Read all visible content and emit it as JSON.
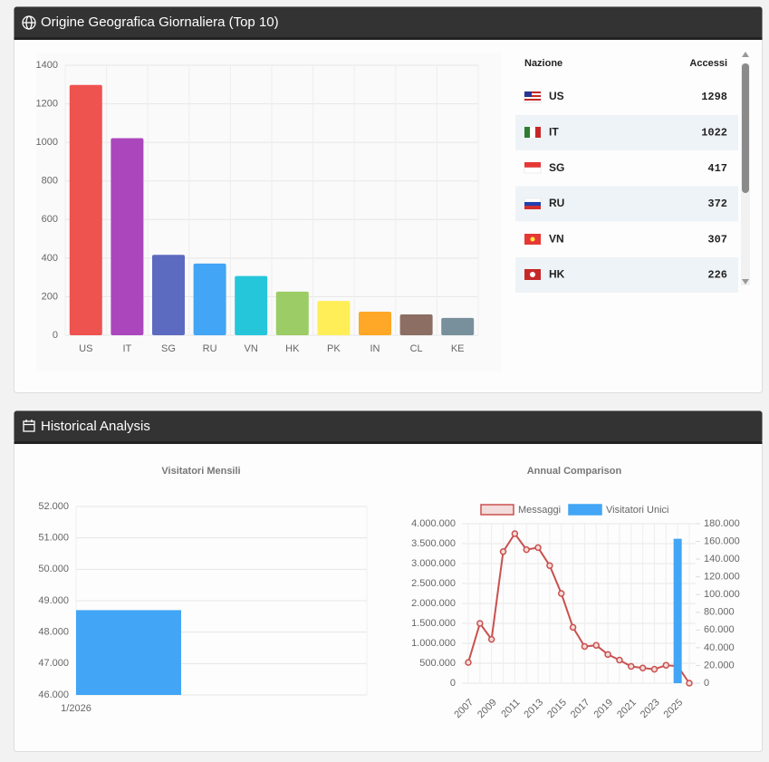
{
  "panels": [
    {
      "title": "Origine Geografica Giornaliera (Top 10)"
    },
    {
      "title": "Historical Analysis"
    }
  ],
  "table": {
    "headers": [
      "Nazione",
      "Accessi"
    ],
    "rows": [
      [
        "US",
        1298
      ],
      [
        "IT",
        1022
      ],
      [
        "SG",
        417
      ],
      [
        "RU",
        372
      ],
      [
        "VN",
        307
      ],
      [
        "HK",
        226
      ]
    ]
  },
  "chart_data": [
    {
      "type": "bar",
      "categories": [
        "US",
        "IT",
        "SG",
        "RU",
        "VN",
        "HK",
        "PK",
        "IN",
        "CL",
        "KE"
      ],
      "values": [
        1298,
        1022,
        417,
        372,
        307,
        226,
        178,
        122,
        108,
        90
      ],
      "colors": [
        "#ef5350",
        "#ab47bc",
        "#5c6bc0",
        "#42a5f5",
        "#26c6da",
        "#9ccc65",
        "#ffee58",
        "#ffa726",
        "#8d6e63",
        "#78909c"
      ],
      "ylim": [
        0,
        1400
      ],
      "yticks": [
        0,
        200,
        400,
        600,
        800,
        1000,
        1200,
        1400
      ],
      "grid": true
    },
    {
      "type": "bar",
      "title": "Visitatori Mensili",
      "categories": [
        "1/2026"
      ],
      "values": [
        48700
      ],
      "color": "#42a5f5",
      "ylim": [
        46000,
        52000
      ],
      "yticks": [
        {
          "value": 46000,
          "label": "46.000"
        },
        {
          "value": 47000,
          "label": "47.000"
        },
        {
          "value": 48000,
          "label": "48.000"
        },
        {
          "value": 49000,
          "label": "49.000"
        },
        {
          "value": 50000,
          "label": "50.000"
        },
        {
          "value": 51000,
          "label": "51.000"
        },
        {
          "value": 52000,
          "label": "52.000"
        }
      ],
      "grid": true
    },
    {
      "type": "line",
      "title": "Annual Comparison",
      "categories": [
        "2007",
        null,
        "2009",
        null,
        "2011",
        null,
        "2013",
        null,
        "2015",
        null,
        "2017",
        null,
        "2019",
        null,
        "2021",
        null,
        "2023",
        null,
        "2025",
        null
      ],
      "series": [
        {
          "name": "Messaggi",
          "color": "#c9514e",
          "fill": "#f3dcdc",
          "values": [
            520000,
            1500000,
            1100000,
            3300000,
            3750000,
            3350000,
            3400000,
            2950000,
            2250000,
            1400000,
            920000,
            950000,
            720000,
            580000,
            420000,
            380000,
            350000,
            450000,
            430000,
            0
          ]
        },
        {
          "name": "Visitatori Unici",
          "color": "#42a5f5",
          "axis": "y2",
          "values": [
            null,
            null,
            null,
            null,
            null,
            null,
            null,
            null,
            null,
            null,
            null,
            null,
            null,
            null,
            null,
            null,
            null,
            null,
            163000,
            null
          ]
        }
      ],
      "ylim": [
        0,
        4000000
      ],
      "yticks": [
        0,
        {
          "value": 500000,
          "label": "500.000"
        },
        {
          "value": 1000000,
          "label": "1.000.000"
        },
        {
          "value": 1500000,
          "label": "1.500.000"
        },
        {
          "value": 2000000,
          "label": "2.000.000"
        },
        {
          "value": 2500000,
          "label": "2.500.000"
        },
        {
          "value": 3000000,
          "label": "3.000.000"
        },
        {
          "value": 3500000,
          "label": "3.500.000"
        },
        {
          "value": 4000000,
          "label": "4.000.000"
        }
      ],
      "y2lim": [
        0,
        180000
      ],
      "y2ticks": [
        0,
        {
          "value": 20000,
          "label": "20.000"
        },
        {
          "value": 40000,
          "label": "40.000"
        },
        {
          "value": 60000,
          "label": "60.000"
        },
        {
          "value": 80000,
          "label": "80.000"
        },
        {
          "value": 100000,
          "label": "100.000"
        },
        {
          "value": 120000,
          "label": "120.000"
        },
        {
          "value": 140000,
          "label": "140.000"
        },
        {
          "value": 160000,
          "label": "160.000"
        },
        {
          "value": 180000,
          "label": "180.000"
        }
      ],
      "grid": true,
      "legend": "top"
    }
  ]
}
